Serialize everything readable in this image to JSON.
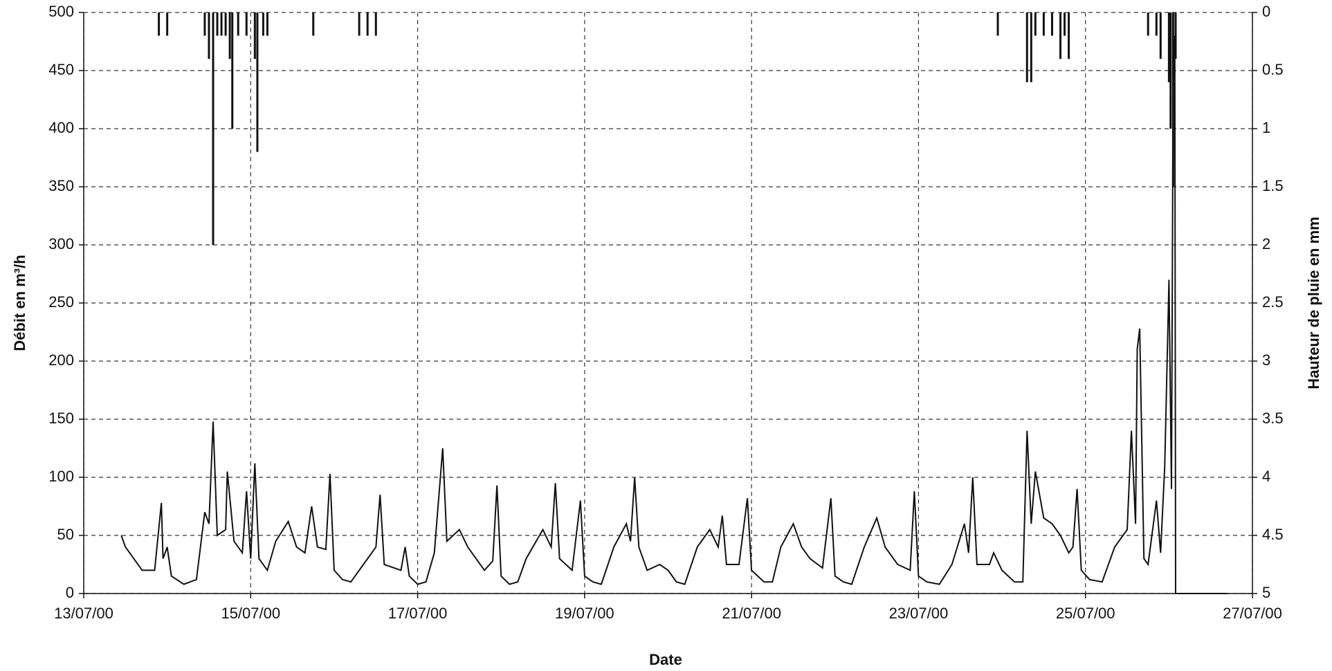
{
  "chart_data": {
    "type": "line_bar",
    "x_label": "Date",
    "y_label": "Débit en m³/h",
    "y2_label": "Hauteur de pluie en mm",
    "xlim": [
      13,
      27
    ],
    "xticks": [
      {
        "value": 13,
        "label": "13/07/00"
      },
      {
        "value": 15,
        "label": "15/07/00"
      },
      {
        "value": 17,
        "label": "17/07/00"
      },
      {
        "value": 19,
        "label": "19/07/00"
      },
      {
        "value": 21,
        "label": "21/07/00"
      },
      {
        "value": 23,
        "label": "23/07/00"
      },
      {
        "value": 25,
        "label": "25/07/00"
      },
      {
        "value": 27,
        "label": "27/07/00"
      }
    ],
    "ylim": [
      0,
      500
    ],
    "yticks": [
      0,
      50,
      100,
      150,
      200,
      250,
      300,
      350,
      400,
      450,
      500
    ],
    "y2lim": [
      5,
      0
    ],
    "y2ticks": [
      0,
      0.5,
      1,
      1.5,
      2,
      2.5,
      3,
      3.5,
      4,
      4.5,
      5
    ],
    "grid": true,
    "series": [
      {
        "type": "line",
        "color": "#111111",
        "x": [
          13.45,
          13.5,
          13.6,
          13.7,
          13.85,
          13.93,
          13.95,
          14.0,
          14.05,
          14.2,
          14.35,
          14.45,
          14.5,
          14.55,
          14.6,
          14.7,
          14.72,
          14.8,
          14.9,
          14.95,
          15.0,
          15.05,
          15.1,
          15.2,
          15.3,
          15.45,
          15.55,
          15.65,
          15.73,
          15.8,
          15.9,
          15.95,
          16.0,
          16.1,
          16.2,
          16.35,
          16.5,
          16.55,
          16.6,
          16.8,
          16.85,
          16.9,
          17.0,
          17.1,
          17.2,
          17.3,
          17.35,
          17.5,
          17.6,
          17.8,
          17.9,
          17.95,
          18.0,
          18.1,
          18.2,
          18.3,
          18.5,
          18.6,
          18.65,
          18.7,
          18.85,
          18.95,
          19.0,
          19.1,
          19.2,
          19.35,
          19.5,
          19.55,
          19.6,
          19.65,
          19.75,
          19.9,
          20.0,
          20.1,
          20.2,
          20.35,
          20.5,
          20.6,
          20.65,
          20.7,
          20.85,
          20.95,
          21.0,
          21.15,
          21.25,
          21.35,
          21.5,
          21.6,
          21.7,
          21.85,
          21.95,
          22.0,
          22.1,
          22.2,
          22.35,
          22.5,
          22.6,
          22.75,
          22.9,
          22.95,
          23.0,
          23.1,
          23.25,
          23.4,
          23.55,
          23.6,
          23.65,
          23.7,
          23.85,
          23.9,
          24.0,
          24.15,
          24.25,
          24.3,
          24.35,
          24.4,
          24.5,
          24.6,
          24.7,
          24.8,
          24.85,
          24.9,
          24.95,
          25.05,
          25.2,
          25.35,
          25.5,
          25.55,
          25.6,
          25.62,
          25.65,
          25.7,
          25.75,
          25.85,
          25.9,
          25.95,
          26.0,
          26.03,
          26.05,
          26.07,
          26.08,
          26.7
        ],
        "values": [
          50,
          40,
          30,
          20,
          20,
          78,
          30,
          40,
          15,
          8,
          12,
          70,
          60,
          148,
          50,
          55,
          105,
          45,
          35,
          88,
          30,
          112,
          30,
          20,
          45,
          62,
          40,
          35,
          75,
          40,
          38,
          103,
          20,
          12,
          10,
          25,
          40,
          85,
          25,
          20,
          40,
          15,
          8,
          10,
          35,
          125,
          45,
          55,
          40,
          20,
          28,
          93,
          15,
          8,
          10,
          30,
          55,
          40,
          95,
          30,
          20,
          80,
          15,
          10,
          8,
          40,
          60,
          45,
          100,
          40,
          20,
          25,
          20,
          10,
          8,
          40,
          55,
          40,
          67,
          25,
          25,
          82,
          20,
          10,
          10,
          40,
          60,
          40,
          30,
          22,
          82,
          15,
          10,
          8,
          40,
          65,
          40,
          25,
          20,
          88,
          15,
          10,
          8,
          25,
          60,
          35,
          100,
          25,
          25,
          35,
          20,
          10,
          10,
          140,
          60,
          105,
          65,
          60,
          50,
          35,
          40,
          90,
          20,
          12,
          10,
          40,
          55,
          140,
          60,
          210,
          228,
          30,
          25,
          80,
          35,
          110,
          270,
          90,
          440,
          480,
          0,
          0
        ]
      },
      {
        "type": "bar",
        "axis": "y2",
        "color": "#111111",
        "x": [
          13.9,
          14.0,
          14.45,
          14.5,
          14.55,
          14.6,
          14.65,
          14.7,
          14.75,
          14.78,
          14.85,
          14.95,
          15.05,
          15.08,
          15.15,
          15.2,
          15.75,
          16.3,
          16.4,
          16.5,
          23.95,
          24.3,
          24.35,
          24.4,
          24.5,
          24.6,
          24.7,
          24.75,
          24.8,
          25.75,
          25.85,
          25.9,
          26.0,
          26.02,
          26.05,
          26.08
        ],
        "values": [
          0.2,
          0.2,
          0.2,
          0.4,
          2.0,
          0.2,
          0.2,
          0.2,
          0.4,
          1.0,
          0.2,
          0.2,
          0.4,
          1.2,
          0.2,
          0.2,
          0.2,
          0.2,
          0.2,
          0.2,
          0.2,
          0.6,
          0.6,
          0.2,
          0.2,
          0.2,
          0.4,
          0.2,
          0.4,
          0.2,
          0.2,
          0.4,
          0.6,
          1.0,
          1.5,
          0.4
        ]
      }
    ]
  }
}
